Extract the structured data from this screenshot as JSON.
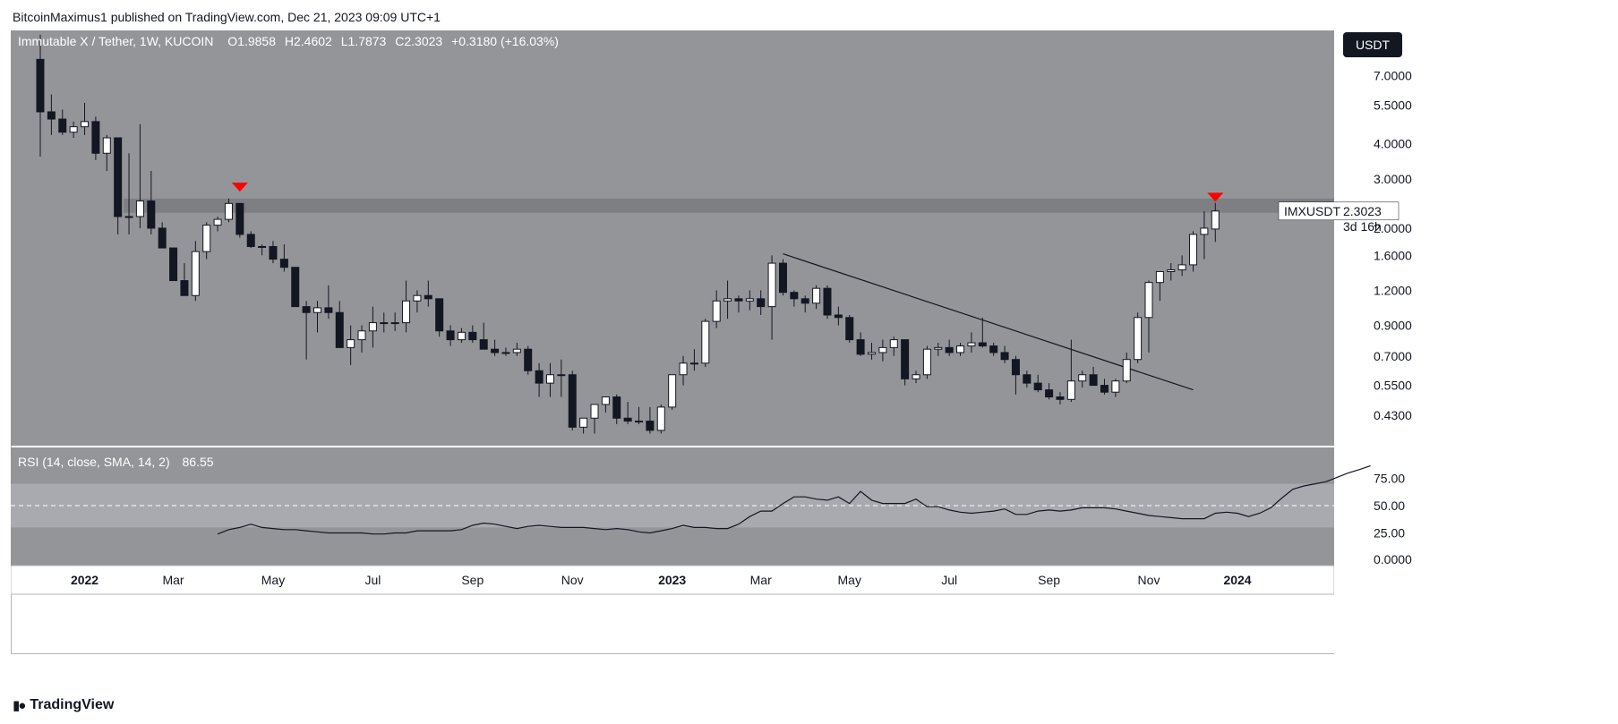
{
  "header": {
    "publisher": "BitcoinMaximus1 published on TradingView.com, Dec 21, 2023 09:09 UTC+1"
  },
  "footer": {
    "brand": "TradingView"
  },
  "colors": {
    "pane_bg": "#949599",
    "up_candle": "#ffffff",
    "down_candle": "#131722",
    "resistance_band": "#7e7f83",
    "marker": "#ff0000",
    "rsi_band": "#a9aab0",
    "axis_bg": "#ffffff"
  },
  "chart_data": {
    "type": "candlestick",
    "symbol_line": {
      "name": "Immutable X / Tether, 1W, KUCOIN",
      "open_label": "O",
      "open": "1.9858",
      "high_label": "H",
      "high": "2.4602",
      "low_label": "L",
      "low": "1.7873",
      "close_label": "C",
      "close": "2.3023",
      "change": "+0.3180 (+16.03%)"
    },
    "currency_button": "USDT",
    "price_scale": "log",
    "price_ticks": [
      "7.0000",
      "5.5000",
      "4.0000",
      "3.0000",
      "2.0000",
      "1.6000",
      "1.2000",
      "0.9000",
      "0.7000",
      "0.5500",
      "0.4300"
    ],
    "ylim": [
      0.34,
      10.0
    ],
    "last_price": {
      "symbol": "IMXUSDT",
      "value": "2.3023",
      "countdown": "3d 16h"
    },
    "x_ticks": [
      "2022",
      "Mar",
      "May",
      "Jul",
      "Sep",
      "Nov",
      "2023",
      "Mar",
      "May",
      "Jul",
      "Sep",
      "Nov",
      "2024"
    ],
    "x_tick_week_index": [
      4,
      12,
      21,
      30,
      39,
      48,
      57,
      65,
      73,
      82,
      91,
      100,
      108
    ],
    "candles": [
      [
        8.0,
        9.8,
        3.6,
        5.2
      ],
      [
        5.2,
        6.0,
        4.3,
        4.9
      ],
      [
        4.9,
        5.3,
        4.3,
        4.4
      ],
      [
        4.4,
        4.8,
        4.2,
        4.6
      ],
      [
        4.6,
        5.6,
        4.3,
        4.8
      ],
      [
        4.8,
        5.0,
        3.5,
        3.7
      ],
      [
        3.7,
        4.3,
        3.2,
        4.2
      ],
      [
        4.2,
        4.2,
        1.9,
        2.2
      ],
      [
        2.2,
        3.7,
        1.9,
        2.2
      ],
      [
        2.2,
        4.7,
        2.0,
        2.5
      ],
      [
        2.5,
        3.2,
        1.9,
        2.0
      ],
      [
        2.0,
        2.1,
        1.7,
        1.7
      ],
      [
        1.7,
        1.7,
        1.3,
        1.3
      ],
      [
        1.3,
        1.5,
        1.15,
        1.15
      ],
      [
        1.15,
        1.8,
        1.1,
        1.65
      ],
      [
        1.65,
        2.1,
        1.55,
        2.05
      ],
      [
        2.05,
        2.2,
        1.95,
        2.15
      ],
      [
        2.15,
        2.55,
        2.1,
        2.45
      ],
      [
        2.45,
        2.45,
        1.85,
        1.9
      ],
      [
        1.9,
        1.95,
        1.7,
        1.72
      ],
      [
        1.72,
        1.75,
        1.6,
        1.72
      ],
      [
        1.72,
        1.8,
        1.5,
        1.55
      ],
      [
        1.55,
        1.75,
        1.4,
        1.45
      ],
      [
        1.45,
        1.45,
        1.05,
        1.05
      ],
      [
        1.05,
        1.1,
        0.68,
        1.0
      ],
      [
        1.0,
        1.1,
        0.85,
        1.04
      ],
      [
        1.04,
        1.25,
        0.95,
        1.0
      ],
      [
        1.0,
        1.1,
        0.78,
        0.75
      ],
      [
        0.75,
        0.9,
        0.65,
        0.8
      ],
      [
        0.8,
        0.9,
        0.72,
        0.86
      ],
      [
        0.86,
        1.05,
        0.75,
        0.92
      ],
      [
        0.92,
        1.0,
        0.85,
        0.92
      ],
      [
        0.92,
        1.0,
        0.86,
        0.92
      ],
      [
        0.92,
        1.3,
        0.85,
        1.1
      ],
      [
        1.1,
        1.2,
        1.0,
        1.15
      ],
      [
        1.15,
        1.3,
        1.05,
        1.12
      ],
      [
        1.12,
        1.12,
        0.82,
        0.86
      ],
      [
        0.86,
        0.9,
        0.76,
        0.8
      ],
      [
        0.8,
        0.88,
        0.78,
        0.85
      ],
      [
        0.85,
        0.9,
        0.78,
        0.8
      ],
      [
        0.8,
        0.92,
        0.77,
        0.74
      ],
      [
        0.74,
        0.8,
        0.7,
        0.72
      ],
      [
        0.72,
        0.75,
        0.7,
        0.72
      ],
      [
        0.72,
        0.78,
        0.7,
        0.74
      ],
      [
        0.74,
        0.76,
        0.6,
        0.62
      ],
      [
        0.62,
        0.66,
        0.5,
        0.56
      ],
      [
        0.56,
        0.66,
        0.5,
        0.6
      ],
      [
        0.6,
        0.68,
        0.5,
        0.6
      ],
      [
        0.6,
        0.62,
        0.38,
        0.39
      ],
      [
        0.39,
        0.42,
        0.37,
        0.42
      ],
      [
        0.42,
        0.45,
        0.37,
        0.47
      ],
      [
        0.47,
        0.5,
        0.44,
        0.5
      ],
      [
        0.5,
        0.51,
        0.4,
        0.42
      ],
      [
        0.42,
        0.48,
        0.4,
        0.41
      ],
      [
        0.41,
        0.46,
        0.4,
        0.41
      ],
      [
        0.41,
        0.46,
        0.37,
        0.38
      ],
      [
        0.38,
        0.47,
        0.37,
        0.46
      ],
      [
        0.46,
        0.6,
        0.45,
        0.6
      ],
      [
        0.6,
        0.7,
        0.55,
        0.66
      ],
      [
        0.66,
        0.74,
        0.62,
        0.66
      ],
      [
        0.66,
        0.95,
        0.64,
        0.93
      ],
      [
        0.93,
        1.2,
        0.88,
        1.1
      ],
      [
        1.1,
        1.3,
        0.95,
        1.12
      ],
      [
        1.12,
        1.15,
        1.0,
        1.1
      ],
      [
        1.1,
        1.2,
        1.02,
        1.12
      ],
      [
        1.12,
        1.2,
        0.98,
        1.05
      ],
      [
        1.05,
        1.6,
        0.8,
        1.5
      ],
      [
        1.5,
        1.55,
        1.15,
        1.18
      ],
      [
        1.18,
        1.2,
        1.05,
        1.12
      ],
      [
        1.12,
        1.15,
        1.0,
        1.08
      ],
      [
        1.08,
        1.25,
        1.03,
        1.22
      ],
      [
        1.22,
        1.25,
        0.95,
        0.98
      ],
      [
        0.98,
        1.05,
        0.9,
        0.96
      ],
      [
        0.96,
        0.98,
        0.78,
        0.8
      ],
      [
        0.8,
        0.85,
        0.7,
        0.71
      ],
      [
        0.71,
        0.78,
        0.68,
        0.72
      ],
      [
        0.72,
        0.8,
        0.67,
        0.75
      ],
      [
        0.75,
        0.82,
        0.7,
        0.8
      ],
      [
        0.8,
        0.8,
        0.55,
        0.58
      ],
      [
        0.58,
        0.62,
        0.56,
        0.6
      ],
      [
        0.6,
        0.76,
        0.58,
        0.74
      ],
      [
        0.74,
        0.78,
        0.7,
        0.75
      ],
      [
        0.75,
        0.8,
        0.7,
        0.72
      ],
      [
        0.72,
        0.78,
        0.7,
        0.76
      ],
      [
        0.76,
        0.85,
        0.72,
        0.78
      ],
      [
        0.78,
        0.96,
        0.75,
        0.76
      ],
      [
        0.76,
        0.78,
        0.7,
        0.72
      ],
      [
        0.72,
        0.76,
        0.66,
        0.68
      ],
      [
        0.68,
        0.7,
        0.51,
        0.6
      ],
      [
        0.6,
        0.62,
        0.54,
        0.56
      ],
      [
        0.56,
        0.6,
        0.52,
        0.53
      ],
      [
        0.53,
        0.56,
        0.49,
        0.5
      ],
      [
        0.5,
        0.52,
        0.47,
        0.49
      ],
      [
        0.49,
        0.8,
        0.48,
        0.57
      ],
      [
        0.57,
        0.62,
        0.54,
        0.6
      ],
      [
        0.6,
        0.64,
        0.55,
        0.55
      ],
      [
        0.55,
        0.58,
        0.51,
        0.52
      ],
      [
        0.52,
        0.58,
        0.5,
        0.57
      ],
      [
        0.57,
        0.72,
        0.56,
        0.68
      ],
      [
        0.68,
        1.0,
        0.66,
        0.96
      ],
      [
        0.96,
        1.3,
        0.72,
        1.28
      ],
      [
        1.28,
        1.4,
        1.1,
        1.4
      ],
      [
        1.4,
        1.5,
        1.3,
        1.42
      ],
      [
        1.42,
        1.6,
        1.35,
        1.48
      ],
      [
        1.48,
        1.95,
        1.4,
        1.9
      ],
      [
        1.9,
        2.3,
        1.55,
        2.0
      ],
      [
        1.9858,
        2.4602,
        1.7873,
        2.3023
      ]
    ],
    "annotations": {
      "resistance_zone": [
        2.27,
        2.55
      ],
      "descending_trendline": [
        {
          "week": 67,
          "price": 1.62
        },
        {
          "week": 104,
          "price": 0.53
        }
      ],
      "red_markers": [
        {
          "week": 18,
          "price": 2.78
        },
        {
          "week": 106,
          "price": 2.56
        }
      ]
    },
    "rsi": {
      "label": "RSI (14, close, SMA, 14, 2)",
      "value": "86.55",
      "ticks": [
        "75.00",
        "50.00",
        "25.00",
        "0.0000"
      ],
      "ylim": [
        0,
        100
      ],
      "band": [
        30,
        70
      ],
      "midline": 50,
      "start_week": 16,
      "values": [
        24,
        28,
        30,
        33,
        30,
        29,
        28,
        28,
        27,
        26,
        25,
        25,
        25,
        25,
        24,
        24,
        25,
        25,
        27,
        27,
        27,
        27,
        28,
        32,
        34,
        33,
        31,
        29,
        31,
        32,
        31,
        30,
        30,
        30,
        29,
        28,
        29,
        28,
        26,
        25,
        27,
        29,
        32,
        30,
        30,
        29,
        29,
        33,
        40,
        45,
        45,
        52,
        58,
        58,
        56,
        55,
        58,
        52,
        63,
        55,
        52,
        52,
        52,
        56,
        49,
        49,
        46,
        44,
        43,
        44,
        45,
        47,
        42,
        42,
        45,
        46,
        45,
        46,
        48,
        48,
        48,
        47,
        45,
        43,
        41,
        40,
        39,
        38,
        38,
        38,
        43,
        44,
        43,
        40,
        43,
        48,
        57,
        65,
        68,
        70,
        72,
        76,
        80,
        83,
        86.55
      ]
    }
  }
}
